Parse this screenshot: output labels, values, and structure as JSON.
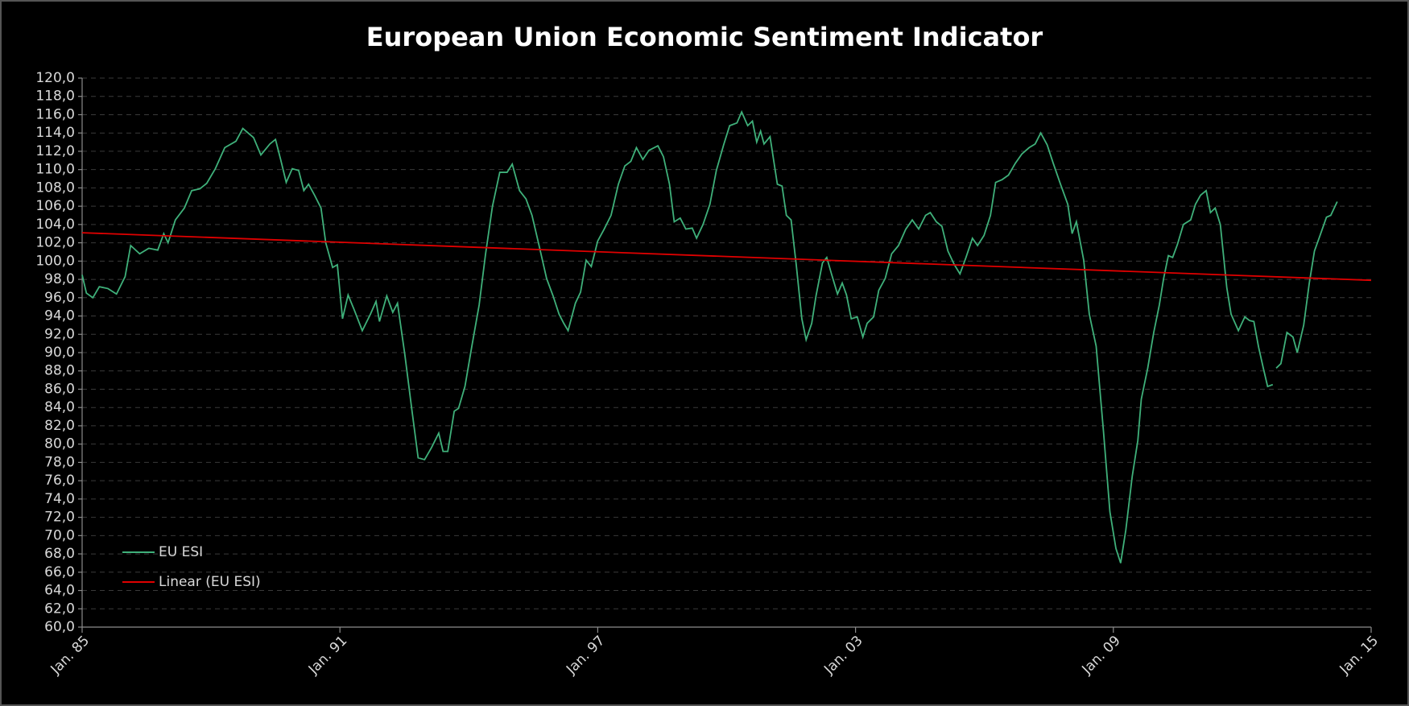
{
  "chart_data": {
    "type": "line",
    "title": "European Union Economic Sentiment Indicator",
    "series": [
      {
        "name": "EU ESI",
        "color": "#3fb07a",
        "x": [
          1985.0,
          1985.1,
          1985.25,
          1985.4,
          1985.6,
          1985.8,
          1986.0,
          1986.13,
          1986.34,
          1986.55,
          1986.76,
          1986.9,
          1987.0,
          1987.17,
          1987.38,
          1987.55,
          1987.74,
          1987.9,
          1988.1,
          1988.32,
          1988.58,
          1988.74,
          1988.99,
          1989.16,
          1989.37,
          1989.5,
          1989.62,
          1989.75,
          1989.89,
          1990.04,
          1990.16,
          1990.27,
          1990.41,
          1990.56,
          1990.67,
          1990.83,
          1990.94,
          1991.06,
          1991.19,
          1991.33,
          1991.52,
          1991.71,
          1991.84,
          1991.92,
          1992.09,
          1992.23,
          1992.34,
          1992.51,
          1992.67,
          1992.82,
          1992.97,
          1993.13,
          1993.3,
          1993.4,
          1993.51,
          1993.66,
          1993.76,
          1993.91,
          1994.07,
          1994.24,
          1994.39,
          1994.55,
          1994.72,
          1994.89,
          1995.01,
          1995.18,
          1995.33,
          1995.47,
          1995.64,
          1995.81,
          1995.96,
          1996.1,
          1996.21,
          1996.31,
          1996.48,
          1996.6,
          1996.73,
          1996.85,
          1997.0,
          1997.15,
          1997.31,
          1997.48,
          1997.63,
          1997.77,
          1997.9,
          1998.05,
          1998.19,
          1998.4,
          1998.53,
          1998.67,
          1998.78,
          1998.92,
          1999.05,
          1999.2,
          1999.3,
          1999.45,
          1999.61,
          1999.76,
          1999.93,
          2000.07,
          2000.24,
          2000.35,
          2000.49,
          2000.6,
          2000.7,
          2000.79,
          2000.87,
          2001.01,
          2001.18,
          2001.29,
          2001.39,
          2001.5,
          2001.62,
          2001.75,
          2001.85,
          2001.98,
          2002.08,
          2002.23,
          2002.33,
          2002.44,
          2002.58,
          2002.69,
          2002.79,
          2002.9,
          2003.04,
          2003.17,
          2003.27,
          2003.42,
          2003.54,
          2003.69,
          2003.84,
          2004.0,
          2004.17,
          2004.32,
          2004.47,
          2004.63,
          2004.74,
          2004.88,
          2005.01,
          2005.15,
          2005.3,
          2005.43,
          2005.57,
          2005.72,
          2005.84,
          2005.99,
          2006.14,
          2006.26,
          2006.41,
          2006.56,
          2006.72,
          2006.87,
          2007.04,
          2007.18,
          2007.31,
          2007.46,
          2007.6,
          2007.77,
          2007.94,
          2008.04,
          2008.14,
          2008.31,
          2008.44,
          2008.6,
          2008.77,
          2008.92,
          2009.06,
          2009.17,
          2009.29,
          2009.44,
          2009.57,
          2009.65,
          2009.8,
          2009.94,
          2010.07,
          2010.17,
          2010.28,
          2010.38,
          2010.49,
          2010.63,
          2010.8,
          2010.91,
          2011.03,
          2011.16,
          2011.26,
          2011.37,
          2011.49,
          2011.64,
          2011.74,
          2011.91,
          2012.06,
          2012.17,
          2012.27,
          2012.38,
          2012.49,
          2012.59,
          2012.71,
          2012.75,
          2012.79,
          2012.9,
          2013.04,
          2013.18,
          2013.28,
          2013.43,
          2013.56,
          2013.68,
          2013.81,
          2013.96,
          2014.06,
          2014.21
        ],
        "values": [
          98.5,
          96.5,
          96.0,
          97.2,
          97.0,
          96.4,
          98.3,
          101.7,
          100.8,
          101.4,
          101.2,
          103.0,
          102.0,
          104.5,
          105.8,
          107.7,
          107.9,
          108.5,
          110.1,
          112.4,
          113.1,
          114.5,
          113.5,
          111.6,
          112.8,
          113.3,
          111.1,
          108.6,
          110.1,
          109.9,
          107.7,
          108.4,
          107.2,
          105.8,
          102.0,
          99.3,
          99.6,
          93.7,
          96.3,
          94.7,
          92.4,
          94.2,
          95.6,
          93.4,
          96.2,
          94.4,
          95.4,
          89.8,
          83.9,
          78.5,
          78.3,
          79.6,
          81.2,
          79.2,
          79.2,
          83.6,
          83.9,
          86.3,
          90.7,
          95.2,
          100.8,
          106.0,
          109.7,
          109.7,
          110.6,
          107.7,
          106.8,
          105.0,
          101.6,
          98.1,
          96.2,
          94.2,
          93.2,
          92.4,
          95.4,
          96.6,
          100.1,
          99.4,
          102.2,
          103.5,
          105.0,
          108.4,
          110.4,
          110.9,
          112.4,
          111.1,
          112.1,
          112.6,
          111.4,
          108.4,
          104.3,
          104.7,
          103.5,
          103.6,
          102.5,
          104.0,
          106.2,
          109.9,
          112.7,
          114.8,
          115.1,
          116.3,
          114.8,
          115.3,
          113.0,
          114.2,
          112.8,
          113.6,
          108.4,
          108.2,
          105.0,
          104.5,
          99.6,
          93.7,
          91.4,
          93.2,
          96.2,
          99.8,
          100.4,
          98.6,
          96.4,
          97.6,
          96.3,
          93.7,
          93.9,
          91.7,
          93.2,
          93.9,
          96.8,
          98.1,
          100.8,
          101.7,
          103.5,
          104.5,
          103.5,
          105.0,
          105.3,
          104.3,
          103.8,
          101.1,
          99.6,
          98.6,
          100.4,
          102.5,
          101.7,
          102.8,
          105.0,
          108.6,
          108.9,
          109.4,
          110.7,
          111.7,
          112.4,
          112.8,
          114.0,
          112.7,
          110.7,
          108.4,
          106.2,
          103.0,
          104.3,
          100.1,
          94.2,
          90.7,
          81.4,
          72.6,
          68.6,
          67.0,
          70.6,
          76.5,
          80.4,
          84.9,
          88.3,
          92.2,
          95.2,
          98.1,
          100.6,
          100.4,
          101.8,
          104.0,
          104.5,
          106.2,
          107.2,
          107.7,
          105.3,
          105.8,
          104.0,
          97.1,
          94.2,
          92.4,
          93.9,
          93.5,
          93.4,
          90.6,
          88.3,
          86.3,
          86.5,
          null,
          88.3,
          88.8,
          92.2,
          91.7,
          90.0,
          93.0,
          97.6,
          101.1,
          102.8,
          104.8,
          105.0,
          106.5
        ]
      },
      {
        "name": "Linear (EU ESI)",
        "color": "#e00000",
        "x": [
          1985,
          2015
        ],
        "values": [
          103.1,
          97.9
        ]
      }
    ],
    "xlim": [
      1985,
      2015
    ],
    "xticks": [
      {
        "value": 1985,
        "label": "Jan. 85"
      },
      {
        "value": 1991,
        "label": "Jan. 91"
      },
      {
        "value": 1997,
        "label": "Jan. 97"
      },
      {
        "value": 2003,
        "label": "Jan. 03"
      },
      {
        "value": 2009,
        "label": "Jan. 09"
      },
      {
        "value": 2015,
        "label": "Jan. 15"
      }
    ],
    "ylim": [
      60,
      120
    ],
    "yticks": [
      {
        "value": 60,
        "label": "60,0"
      },
      {
        "value": 62,
        "label": "62,0"
      },
      {
        "value": 64,
        "label": "64,0"
      },
      {
        "value": 66,
        "label": "66,0"
      },
      {
        "value": 68,
        "label": "68,0"
      },
      {
        "value": 70,
        "label": "70,0"
      },
      {
        "value": 72,
        "label": "72,0"
      },
      {
        "value": 74,
        "label": "74,0"
      },
      {
        "value": 76,
        "label": "76,0"
      },
      {
        "value": 78,
        "label": "78,0"
      },
      {
        "value": 80,
        "label": "80,0"
      },
      {
        "value": 82,
        "label": "82,0"
      },
      {
        "value": 84,
        "label": "84,0"
      },
      {
        "value": 86,
        "label": "86,0"
      },
      {
        "value": 88,
        "label": "88,0"
      },
      {
        "value": 90,
        "label": "90,0"
      },
      {
        "value": 92,
        "label": "92,0"
      },
      {
        "value": 94,
        "label": "94,0"
      },
      {
        "value": 96,
        "label": "96,0"
      },
      {
        "value": 98,
        "label": "98,0"
      },
      {
        "value": 100,
        "label": "100,0"
      },
      {
        "value": 102,
        "label": "102,0"
      },
      {
        "value": 104,
        "label": "104,0"
      },
      {
        "value": 106,
        "label": "106,0"
      },
      {
        "value": 108,
        "label": "108,0"
      },
      {
        "value": 110,
        "label": "110,0"
      },
      {
        "value": 112,
        "label": "112,0"
      },
      {
        "value": 114,
        "label": "114,0"
      },
      {
        "value": 116,
        "label": "116,0"
      },
      {
        "value": 118,
        "label": "118,0"
      },
      {
        "value": 120,
        "label": "120,0"
      }
    ],
    "grid": true,
    "legend": "bottom-left"
  }
}
